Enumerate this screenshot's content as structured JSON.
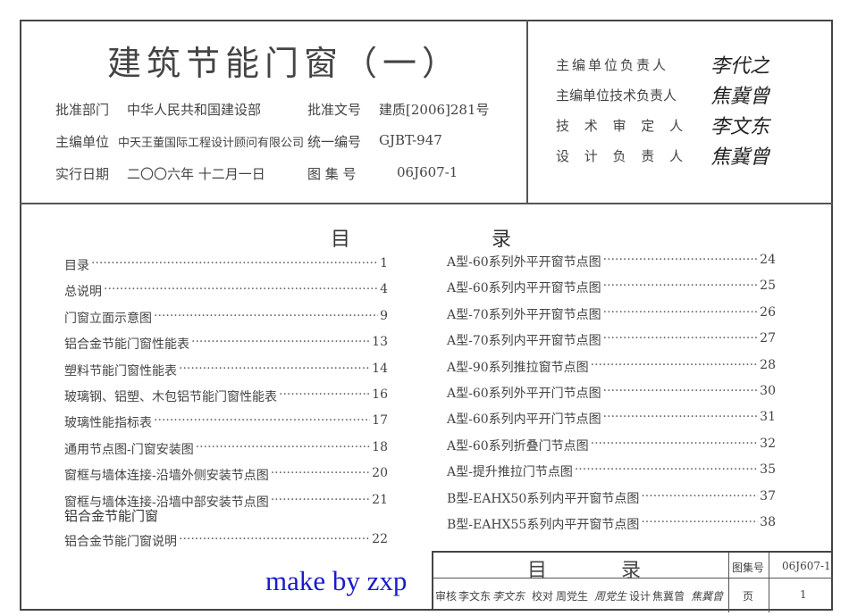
{
  "header": {
    "title": "建筑节能门窗（一）",
    "rows": [
      {
        "l1": "批准部门",
        "v1": "中华人民共和国建设部",
        "l2": "批准文号",
        "v2": "建质[2006]281号"
      },
      {
        "l1": "主编单位",
        "v1": "中天王董国际工程设计顾问有限公司",
        "l2": "统一编号",
        "v2": "GJBT-947"
      },
      {
        "l1": "实行日期",
        "v1": "二〇〇六年 十二月一日",
        "l2": "图 集 号",
        "v2": "06J607-1"
      }
    ],
    "responsible": [
      {
        "role": "主编单位负责人",
        "signature": "李代之"
      },
      {
        "role": "主编单位技术负责人",
        "signature": "焦冀曾"
      },
      {
        "role": "技 术 审 定 人",
        "signature": "李文东"
      },
      {
        "role": "设 计 负 责 人",
        "signature": "焦冀曾"
      }
    ]
  },
  "toc": {
    "heading_left": "目",
    "heading_right": "录",
    "left": [
      {
        "t": "目录",
        "p": "1"
      },
      {
        "t": "总说明",
        "p": "4"
      },
      {
        "t": "门窗立面示意图",
        "p": "9"
      },
      {
        "t": "铝合金节能门窗性能表",
        "p": "13"
      },
      {
        "t": "塑料节能门窗性能表",
        "p": "14"
      },
      {
        "t": "玻璃钢、铝塑、木包铝节能门窗性能表",
        "p": "16"
      },
      {
        "t": "玻璃性能指标表",
        "p": "17"
      },
      {
        "t": "通用节点图-门窗安装图",
        "p": "18"
      },
      {
        "t": "窗框与墙体连接-沿墙外侧安装节点图",
        "p": "20"
      },
      {
        "t": "窗框与墙体连接-沿墙中部安装节点图",
        "p": "21"
      }
    ],
    "section": "铝合金节能门窗",
    "section_item": {
      "t": "铝合金节能门窗说明",
      "p": "22"
    },
    "right": [
      {
        "t": "A型-60系列外平开窗节点图",
        "p": "24"
      },
      {
        "t": "A型-60系列内平开窗节点图",
        "p": "25"
      },
      {
        "t": "A型-70系列外平开窗节点图",
        "p": "26"
      },
      {
        "t": "A型-70系列内平开窗节点图",
        "p": "27"
      },
      {
        "t": "A型-90系列推拉窗节点图",
        "p": "28"
      },
      {
        "t": "A型-60系列外平开门节点图",
        "p": "30"
      },
      {
        "t": "A型-60系列内平开门节点图",
        "p": "31"
      },
      {
        "t": "A型-60系列折叠门节点图",
        "p": "32"
      },
      {
        "t": "A型-提升推拉门节点图",
        "p": "35"
      },
      {
        "t": "B型-EAHX50系列内平开窗节点图",
        "p": "37"
      },
      {
        "t": "B型-EAHX55系列内平开窗节点图",
        "p": "38"
      }
    ]
  },
  "title_block": {
    "name_left": "目",
    "name_right": "录",
    "atlas_label": "图集号",
    "atlas_no": "06J607-1",
    "page_label": "页",
    "page_no": "1",
    "review": "审核",
    "reviewer": "李文东",
    "review_sig": "李文东",
    "check": "校对",
    "checker": "周党生",
    "check_sig": "周党生",
    "design": "设计",
    "designer": "焦冀曾",
    "design_sig": "焦冀曾"
  },
  "watermark": "make by zxp"
}
